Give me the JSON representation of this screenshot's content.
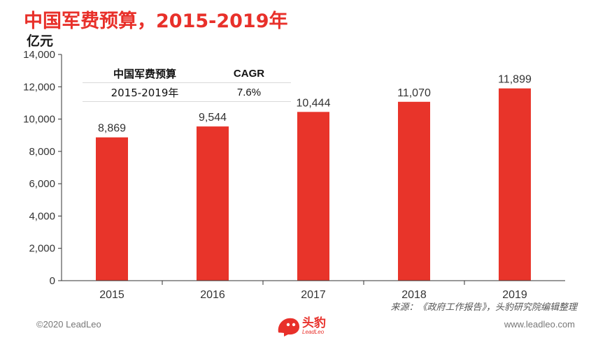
{
  "header": {
    "title": "中国军费预算，2015-2019年",
    "unit": "亿元"
  },
  "cagr_table": {
    "col1_header": "中国军费预算",
    "col2_header": "CAGR",
    "col1_value": "2015-2019年",
    "col2_value": "7.6%"
  },
  "chart_data": {
    "type": "bar",
    "categories": [
      "2015",
      "2016",
      "2017",
      "2018",
      "2019"
    ],
    "values": [
      8869,
      9544,
      10444,
      11070,
      11899
    ],
    "value_labels": [
      "8,869",
      "9,544",
      "10,444",
      "11,070",
      "11,899"
    ],
    "ylim": [
      0,
      14000
    ],
    "yticks": [
      0,
      2000,
      4000,
      6000,
      8000,
      10000,
      12000,
      14000
    ],
    "ytick_labels": [
      "0",
      "2,000",
      "4,000",
      "6,000",
      "8,000",
      "10,000",
      "12,000",
      "14,000"
    ],
    "ylabel": "亿元",
    "bar_color": "#e8342a",
    "grid": false
  },
  "footer": {
    "source": "来源：《政府工作报告》，头豹研究院编辑整理",
    "copyright": "©2020 LeadLeo",
    "website": "www.leadleo.com",
    "logo_text": "头豹",
    "logo_sub": "LeadLeo"
  }
}
